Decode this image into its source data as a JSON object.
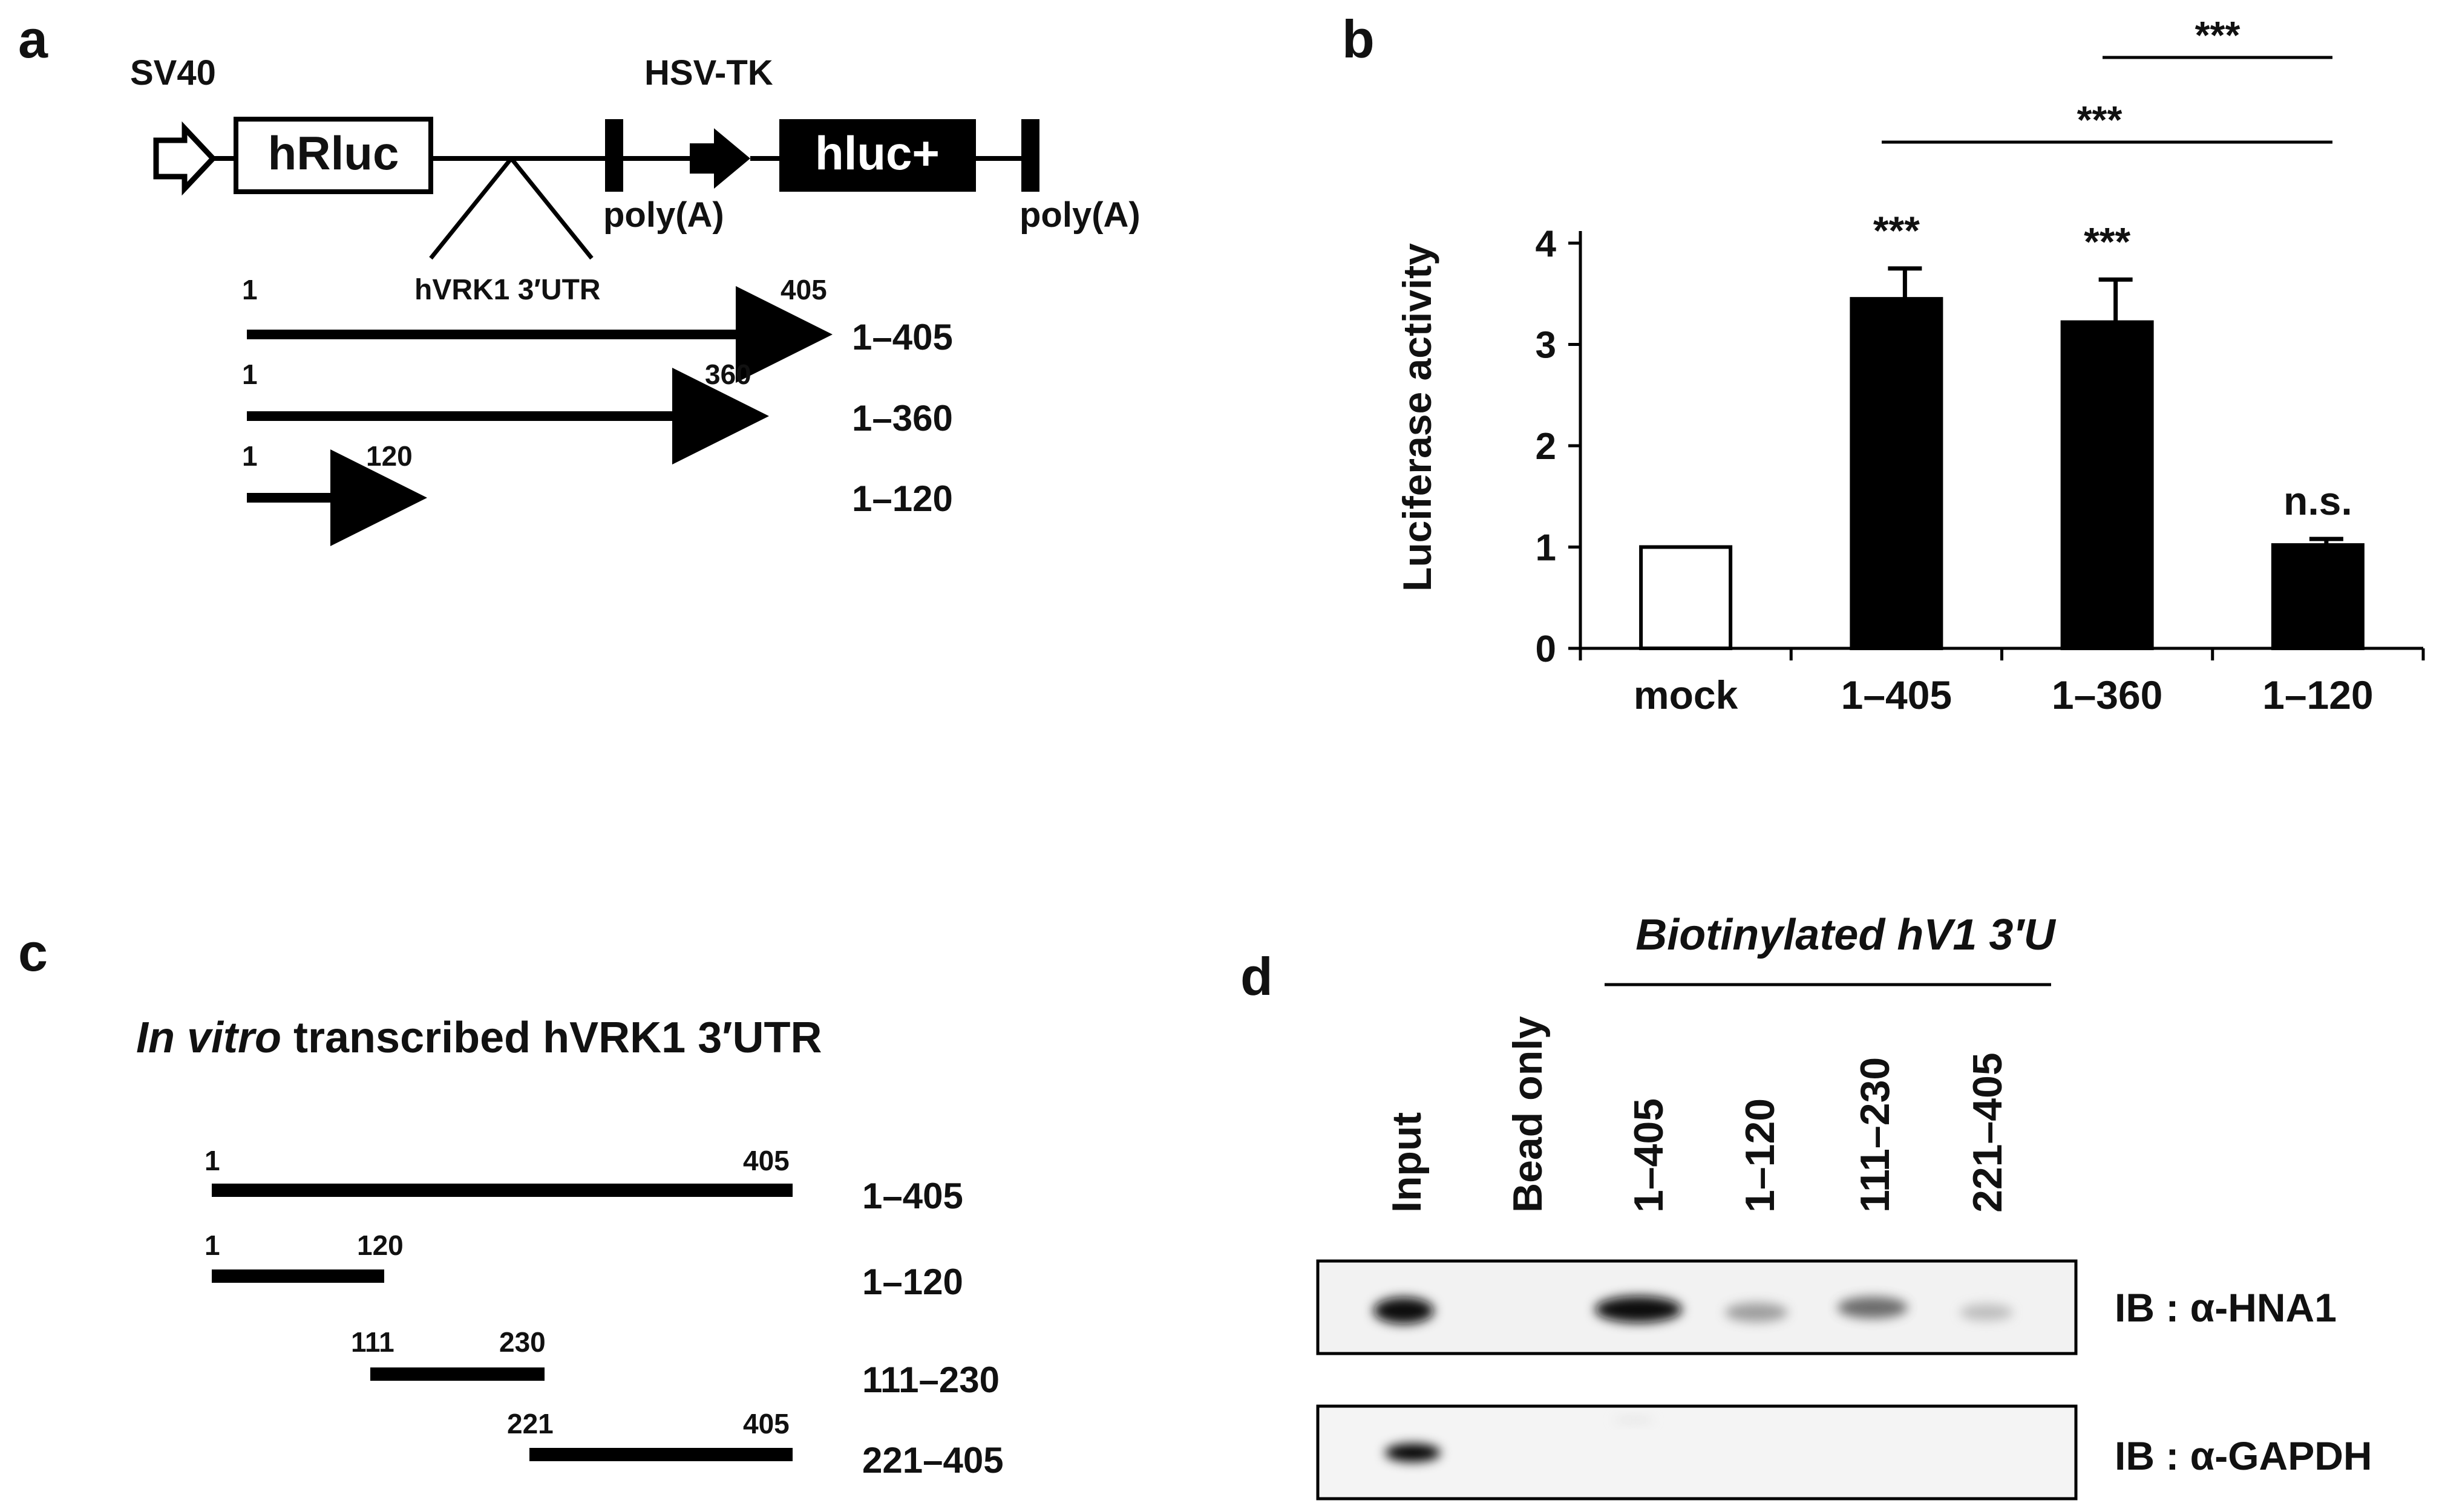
{
  "panel_a": {
    "letter": "a",
    "promoter_sv40": "SV40",
    "promoter_hsvtk": "HSV-TK",
    "gene_hrluc": "hRluc",
    "gene_hluc": "hluc+",
    "polya_1": "poly(A)",
    "polya_2": "poly(A)",
    "insert_label": "hVRK1 3′UTR",
    "constructs": [
      {
        "name": "1–405",
        "start": "1",
        "end": "405"
      },
      {
        "name": "1–360",
        "start": "1",
        "end": "360"
      },
      {
        "name": "1–120",
        "start": "1",
        "end": "120"
      }
    ]
  },
  "panel_b": {
    "letter": "b",
    "significance": [
      "***",
      "***",
      "***",
      "***",
      "n.s."
    ]
  },
  "chart_data": {
    "type": "bar",
    "categories": [
      "mock",
      "1–405",
      "1–360",
      "1–120"
    ],
    "values": [
      1.0,
      3.45,
      3.22,
      1.02
    ],
    "errors": [
      0,
      0.3,
      0.42,
      0.06
    ],
    "bar_colors": [
      "#ffffff",
      "#000000",
      "#000000",
      "#000000"
    ],
    "ylabel": "Luciferase activity",
    "ylim": [
      0,
      4
    ],
    "yticks": [
      "0",
      "1",
      "2",
      "3",
      "4"
    ],
    "grid": false
  },
  "panel_c": {
    "letter": "c",
    "title_italic": "In vitro",
    "title_rest": " transcribed hVRK1 3′UTR",
    "fragments": [
      {
        "name": "1–405",
        "start": "1",
        "end": "405"
      },
      {
        "name": "1–120",
        "start": "1",
        "end": "120"
      },
      {
        "name": "111–230",
        "start": "111",
        "end": "230"
      },
      {
        "name": "221–405",
        "start": "221",
        "end": "405"
      }
    ]
  },
  "panel_d": {
    "letter": "d",
    "group_label": "Biotinylated hV1 3′U",
    "lanes": [
      "Input",
      "Bead only",
      "1–405",
      "1–120",
      "111–230",
      "221–405"
    ],
    "blot_1_label": "IB : α-HNA1",
    "blot_2_label": "IB : α-GAPDH"
  }
}
